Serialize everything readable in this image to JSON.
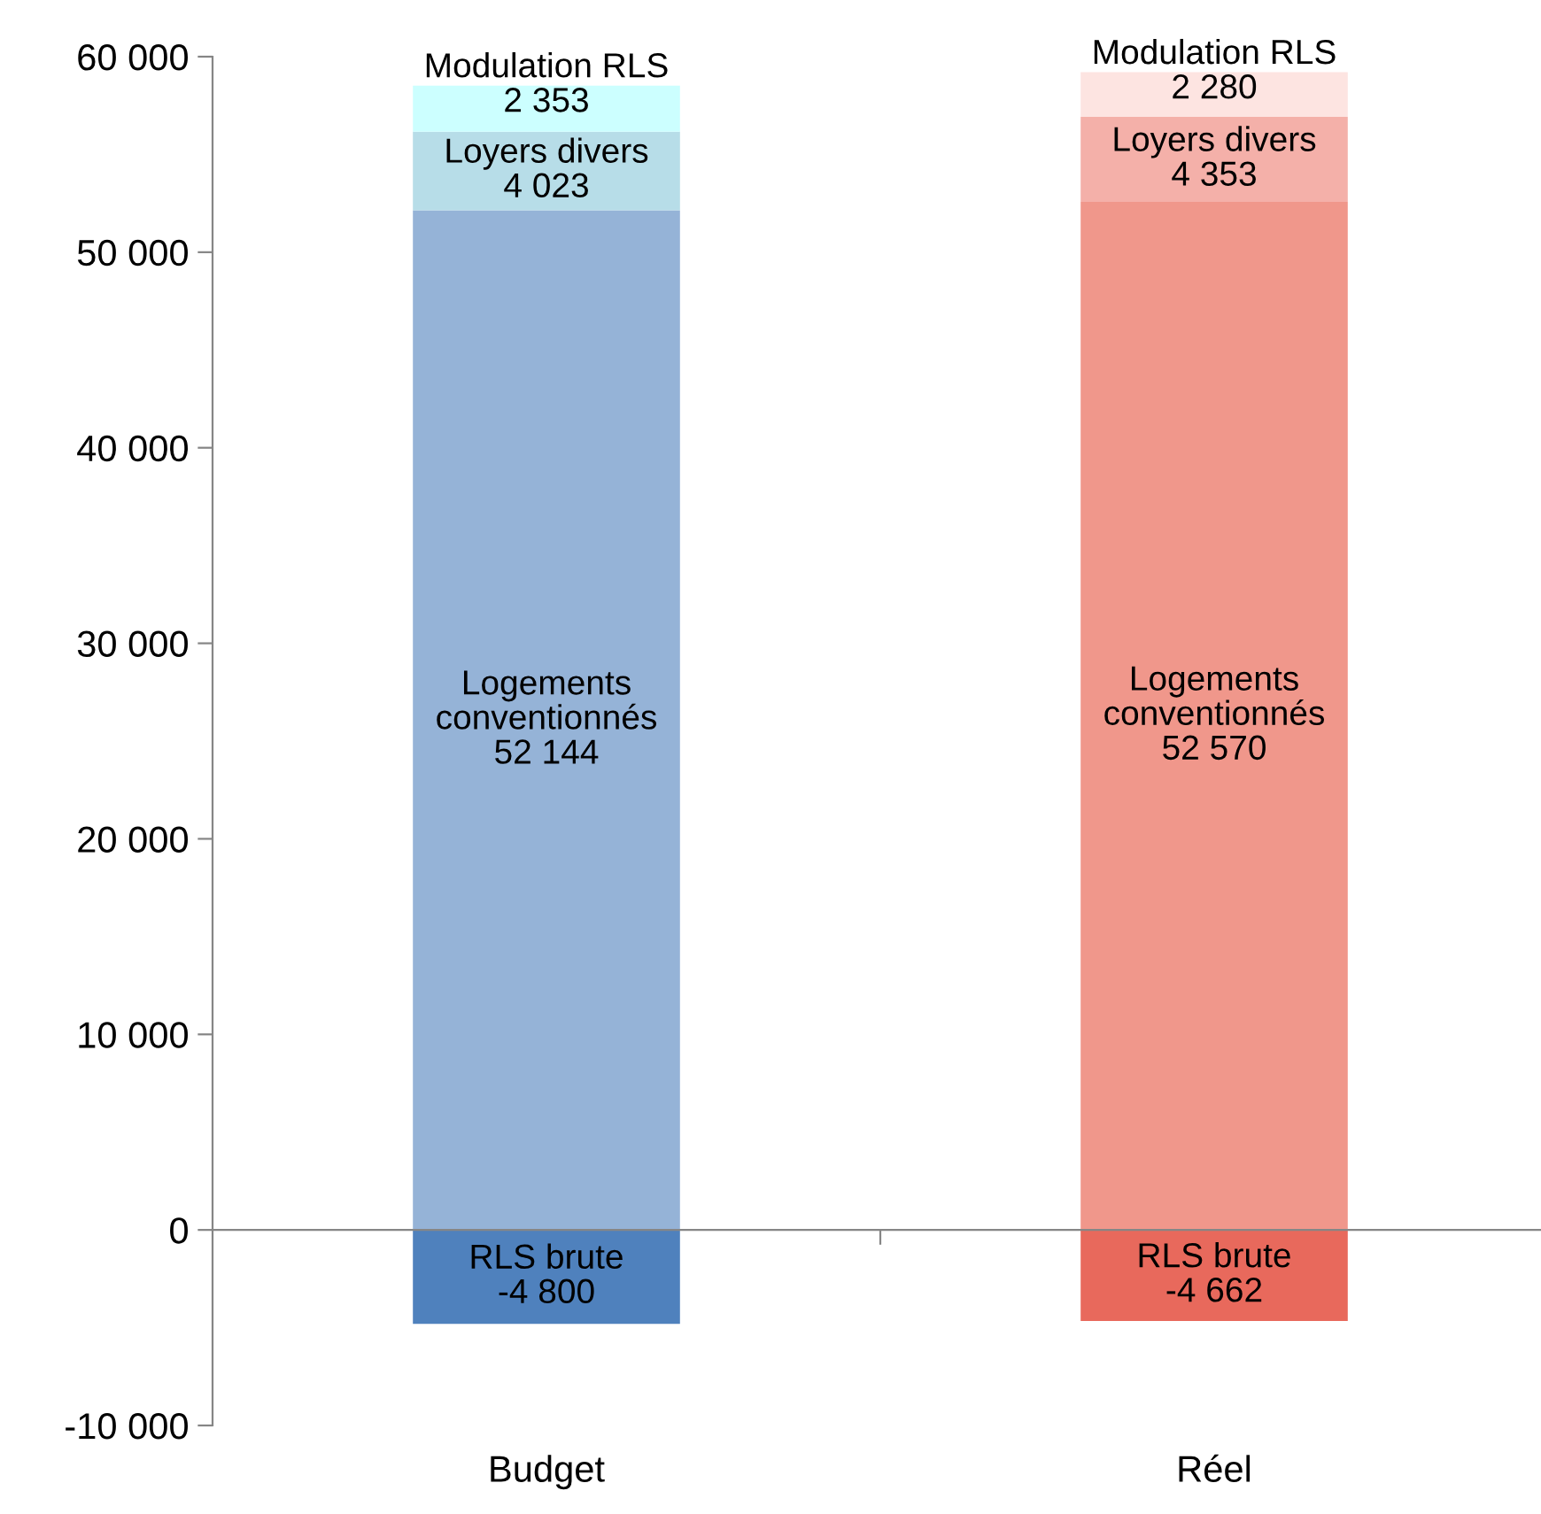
{
  "chart_data": {
    "type": "bar",
    "stacked": true,
    "categories": [
      "Budget",
      "Réel"
    ],
    "ylim": [
      -10000,
      60000
    ],
    "yticks": [
      {
        "value": -10000,
        "label": "-10 000"
      },
      {
        "value": 0,
        "label": "0"
      },
      {
        "value": 10000,
        "label": "10 000"
      },
      {
        "value": 20000,
        "label": "20 000"
      },
      {
        "value": 30000,
        "label": "30 000"
      },
      {
        "value": 40000,
        "label": "40 000"
      },
      {
        "value": 50000,
        "label": "50 000"
      },
      {
        "value": 60000,
        "label": "60 000"
      }
    ],
    "legend": false,
    "series": [
      {
        "name": "RLS brute",
        "values": [
          -4800,
          -4662
        ],
        "colors": [
          "#4f81bd",
          "#e8695c"
        ],
        "value_labels": [
          "-4 800",
          "-4 662"
        ]
      },
      {
        "name": "Logements\nconventionnés",
        "values": [
          52144,
          52570
        ],
        "colors": [
          "#95b3d7",
          "#f0978b"
        ],
        "value_labels": [
          "52 144",
          "52 570"
        ]
      },
      {
        "name": "Loyers divers",
        "values": [
          4023,
          4353
        ],
        "colors": [
          "#b7dde8",
          "#f4b0a9"
        ],
        "value_labels": [
          "4 023",
          "4 353"
        ]
      },
      {
        "name": "Modulation RLS",
        "values": [
          2353,
          2280
        ],
        "colors": [
          "#ccffff",
          "#fde4e1"
        ],
        "value_labels": [
          "2 353",
          "2 280"
        ]
      }
    ]
  }
}
